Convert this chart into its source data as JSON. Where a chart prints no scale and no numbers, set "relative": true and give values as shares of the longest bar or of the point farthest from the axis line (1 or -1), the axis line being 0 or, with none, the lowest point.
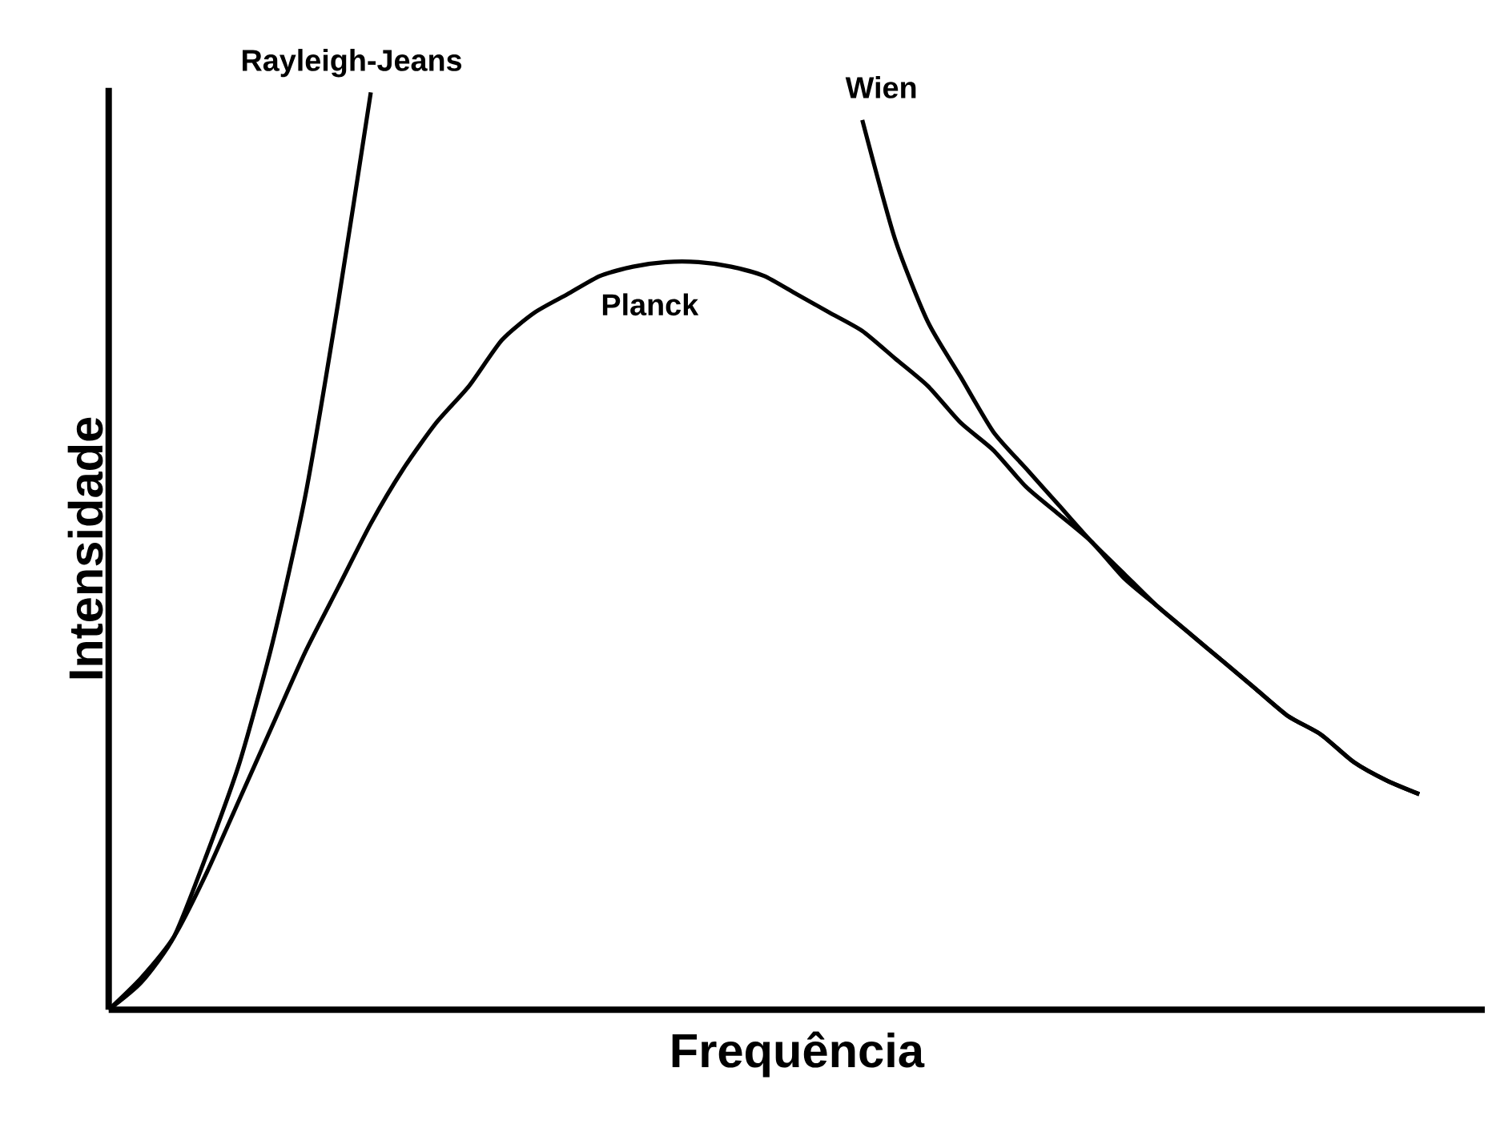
{
  "chart_data": {
    "type": "line",
    "relative": true,
    "xlabel": "Frequência",
    "ylabel": "Intensidade",
    "marker": "none",
    "line_style": "solid",
    "categories": [
      null,
      null,
      null,
      null,
      null,
      null,
      null,
      null,
      null,
      null,
      null,
      null,
      null,
      null,
      null,
      null,
      null,
      null,
      null,
      null,
      null,
      null,
      null,
      null,
      null,
      null,
      null,
      null,
      null,
      null,
      null,
      null,
      null,
      null,
      null,
      null,
      null,
      null,
      null,
      null,
      null
    ],
    "series": [
      {
        "name": "Rayleigh-Jeans",
        "color": "#000000",
        "values": [
          0,
          0.03,
          0.08,
          0.17,
          0.27,
          0.4,
          0.56,
          0.77,
          1,
          null,
          null,
          null,
          null,
          null,
          null,
          null,
          null,
          null,
          null,
          null,
          null,
          null,
          null,
          null,
          null,
          null,
          null,
          null,
          null,
          null,
          null,
          null,
          null,
          null,
          null,
          null,
          null,
          null,
          null,
          null,
          null
        ]
      },
      {
        "name": "Wien",
        "color": "#000000",
        "values": [
          null,
          null,
          null,
          null,
          null,
          null,
          null,
          null,
          null,
          null,
          null,
          null,
          null,
          null,
          null,
          null,
          null,
          null,
          null,
          null,
          null,
          null,
          null,
          0.97,
          0.84,
          0.75,
          0.69,
          0.63,
          0.59,
          0.55,
          0.51,
          0.475,
          0.44,
          0.41,
          0.38,
          0.35,
          0.32,
          0.3,
          0.27,
          0.25,
          0.235
        ]
      },
      {
        "name": "Planck",
        "color": "#000000",
        "values": [
          0,
          0.035,
          0.08,
          0.15,
          0.23,
          0.31,
          0.39,
          0.46,
          0.53,
          0.59,
          0.64,
          0.68,
          0.73,
          0.76,
          0.78,
          0.8,
          0.81,
          0.815,
          0.815,
          0.81,
          0.8,
          0.78,
          0.76,
          0.74,
          0.71,
          0.68,
          0.64,
          0.61,
          0.57,
          0.54,
          0.51,
          0.47,
          0.44,
          0.41,
          0.38,
          0.35,
          0.32,
          0.3,
          0.27,
          0.25,
          0.235
        ]
      }
    ]
  }
}
